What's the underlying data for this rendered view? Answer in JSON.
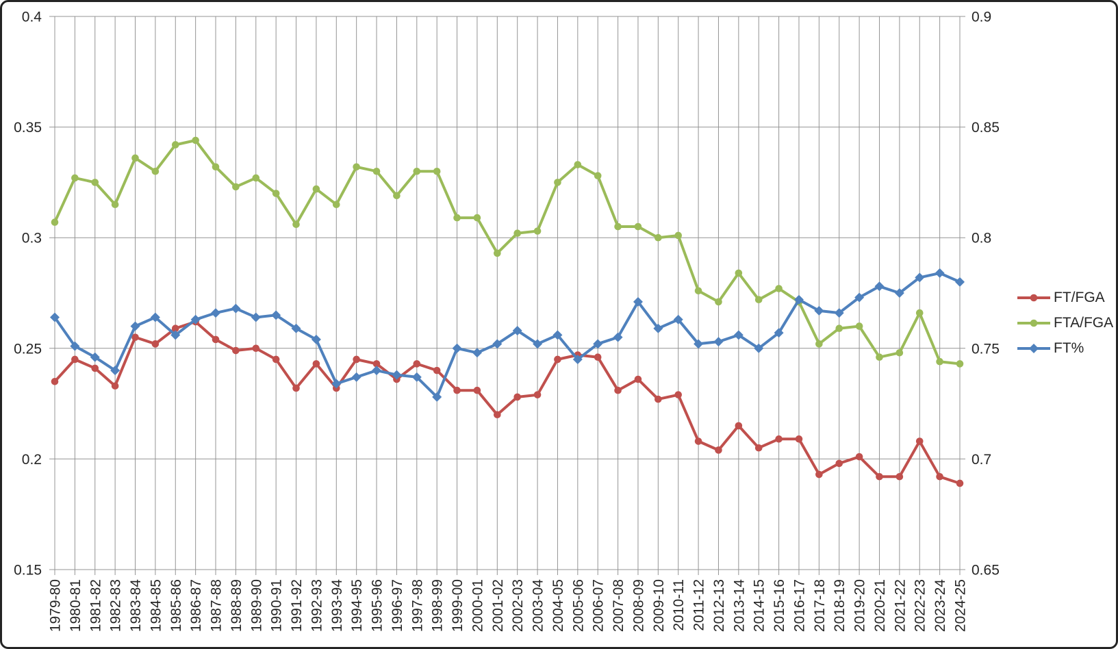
{
  "window": {
    "background": "#ffffff",
    "frame_border_color": "#242424"
  },
  "chart_data": {
    "type": "line",
    "title": "",
    "xlabel": "",
    "ylabel": "",
    "categories": [
      "1979-80",
      "1980-81",
      "1981-82",
      "1982-83",
      "1983-84",
      "1984-85",
      "1985-86",
      "1986-87",
      "1987-88",
      "1988-89",
      "1989-90",
      "1990-91",
      "1991-92",
      "1992-93",
      "1993-94",
      "1994-95",
      "1995-96",
      "1996-97",
      "1997-98",
      "1998-99",
      "1999-00",
      "2000-01",
      "2001-02",
      "2002-03",
      "2003-04",
      "2004-05",
      "2005-06",
      "2006-07",
      "2007-08",
      "2008-09",
      "2009-10",
      "2010-11",
      "2011-12",
      "2012-13",
      "2013-14",
      "2014-15",
      "2015-16",
      "2016-17",
      "2017-18",
      "2018-19",
      "2019-20",
      "2020-21",
      "2021-22",
      "2022-23",
      "2023-24",
      "2024-25"
    ],
    "series": [
      {
        "name": "FT/FGA",
        "color": "#C0504D",
        "marker": "circle",
        "axis": "left",
        "values": [
          0.235,
          0.245,
          0.241,
          0.233,
          0.255,
          0.252,
          0.259,
          0.262,
          0.254,
          0.249,
          0.25,
          0.245,
          0.232,
          0.243,
          0.232,
          0.245,
          0.243,
          0.236,
          0.243,
          0.24,
          0.231,
          0.231,
          0.22,
          0.228,
          0.229,
          0.245,
          0.247,
          0.246,
          0.231,
          0.236,
          0.227,
          0.229,
          0.208,
          0.204,
          0.215,
          0.205,
          0.209,
          0.209,
          0.193,
          0.198,
          0.201,
          0.192,
          0.192,
          0.208,
          0.192,
          0.189
        ]
      },
      {
        "name": "FTA/FGA",
        "color": "#9BBB59",
        "marker": "circle",
        "axis": "left",
        "values": [
          0.307,
          0.327,
          0.325,
          0.315,
          0.336,
          0.33,
          0.342,
          0.344,
          0.332,
          0.323,
          0.327,
          0.32,
          0.306,
          0.322,
          0.315,
          0.332,
          0.33,
          0.319,
          0.33,
          0.33,
          0.309,
          0.309,
          0.293,
          0.302,
          0.303,
          0.325,
          0.333,
          0.328,
          0.305,
          0.305,
          0.3,
          0.301,
          0.276,
          0.271,
          0.284,
          0.272,
          0.277,
          0.271,
          0.252,
          0.259,
          0.26,
          0.246,
          0.248,
          0.266,
          0.244,
          0.243
        ]
      },
      {
        "name": "FT%",
        "color": "#4F81BD",
        "marker": "diamond",
        "axis": "right",
        "values": [
          0.764,
          0.751,
          0.746,
          0.74,
          0.76,
          0.764,
          0.756,
          0.763,
          0.766,
          0.768,
          0.764,
          0.765,
          0.759,
          0.754,
          0.734,
          0.737,
          0.74,
          0.738,
          0.737,
          0.728,
          0.75,
          0.748,
          0.752,
          0.758,
          0.752,
          0.756,
          0.745,
          0.752,
          0.755,
          0.771,
          0.759,
          0.763,
          0.752,
          0.753,
          0.756,
          0.75,
          0.757,
          0.772,
          0.767,
          0.766,
          0.773,
          0.778,
          0.775,
          0.782,
          0.784,
          0.78
        ]
      }
    ],
    "left_axis": {
      "min": 0.15,
      "max": 0.4,
      "tick_values": [
        0.4,
        0.35,
        0.3,
        0.25,
        0.2,
        0.15
      ],
      "tick_labels": [
        "0.4",
        "0.35",
        "0.3",
        "0.25",
        "0.2",
        "0.15"
      ]
    },
    "right_axis": {
      "min": 0.65,
      "max": 0.9,
      "tick_values": [
        0.9,
        0.85,
        0.8,
        0.75,
        0.7,
        0.65
      ],
      "tick_labels": [
        "0.9",
        "0.85",
        "0.8",
        "0.75",
        "0.7",
        "0.65"
      ]
    },
    "grid": {
      "show": true,
      "color": "#949494"
    },
    "legend": {
      "position": "right-middle",
      "entries": [
        "FT/FGA",
        "FTA/FGA",
        "FT%"
      ]
    },
    "text_color": "#262626"
  }
}
